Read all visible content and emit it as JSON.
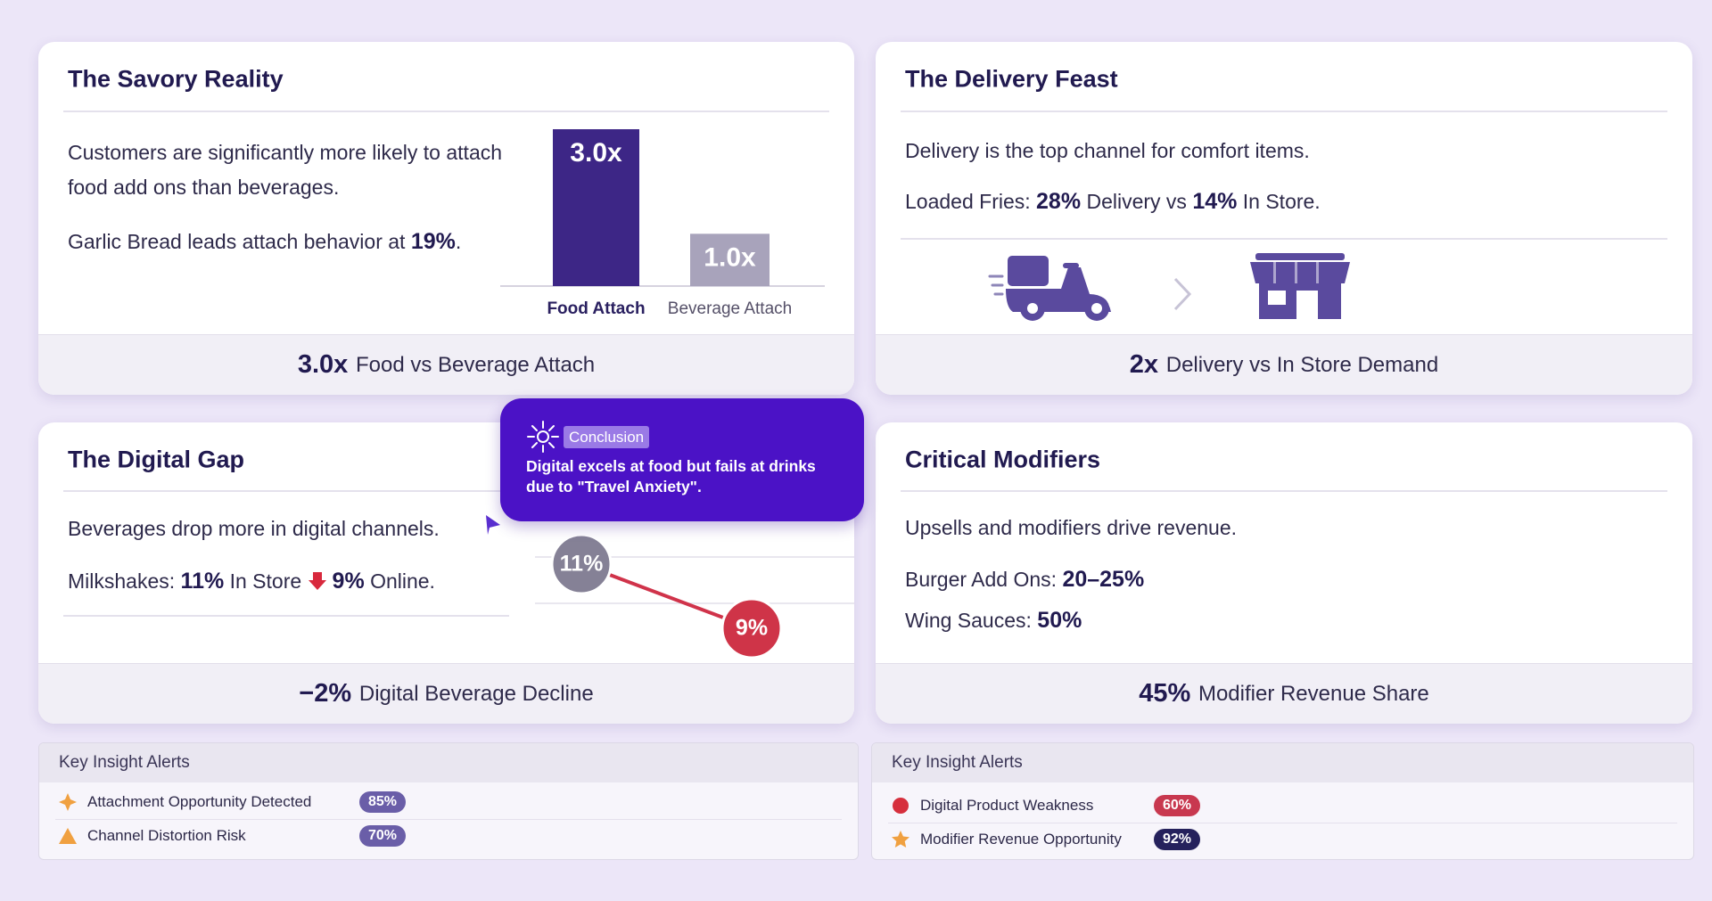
{
  "cards": [
    {
      "title": "The Savory Reality",
      "paragraphs": [
        [
          {
            "text": "Customers are significantly more likely to attach food add ons than beverages."
          }
        ],
        [
          {
            "text": "Garlic Bread leads attach behavior at "
          },
          {
            "text": "19%",
            "bold": true
          },
          {
            "text": "."
          }
        ]
      ],
      "chart": {
        "type": "bar",
        "categories": [
          "Food Attach",
          "Beverage Attach"
        ],
        "values": [
          3.0,
          1.0
        ],
        "value_labels": [
          "3.0x",
          "1.0x"
        ],
        "colors": [
          "#3d2686",
          "#a8a3bb"
        ]
      },
      "footer": [
        {
          "text": "3.0x",
          "bold": true
        },
        {
          "text": " Food vs Beverage Attach"
        }
      ]
    },
    {
      "title": "The Delivery Feast",
      "paragraphs": [
        [
          {
            "text": "Delivery is the top channel for comfort items."
          }
        ],
        [
          {
            "text": "Loaded Fries: "
          },
          {
            "text": "28%",
            "bold": true
          },
          {
            "text": " Delivery vs "
          },
          {
            "text": "14%",
            "bold": true
          },
          {
            "text": " In Store."
          }
        ]
      ],
      "footer": [
        {
          "text": "2x",
          "bold": true
        },
        {
          "text": " Delivery vs In Store Demand"
        }
      ]
    },
    {
      "title": "The Digital Gap",
      "paragraphs": [
        [
          {
            "text": "Beverages drop more in digital channels."
          }
        ],
        [
          {
            "text": "Milkshakes: "
          },
          {
            "text": "11%",
            "bold": true
          },
          {
            "text": " In Store "
          },
          {
            "text": "9%",
            "bold": true,
            "icon": "down"
          },
          {
            "text": " Online."
          }
        ]
      ],
      "chart": {
        "type": "line",
        "values": [
          11,
          9
        ],
        "value_labels": [
          "11%",
          "9%"
        ],
        "colors": [
          "#858196",
          "#cf3448"
        ],
        "line_color": "#d0334a"
      },
      "footer": [
        {
          "text": "−2%",
          "bold": true
        },
        {
          "text": " Digital Beverage Decline"
        }
      ]
    },
    {
      "title": "Critical Modifiers",
      "paragraphs": [
        [
          {
            "text": "Upsells and modifiers drive revenue."
          }
        ],
        [
          {
            "text": "Burger Add Ons: "
          },
          {
            "text": "20–25%",
            "bold": true
          }
        ],
        [
          {
            "text": "Wing Sauces: "
          },
          {
            "text": "50%",
            "bold": true
          }
        ]
      ],
      "footer": [
        {
          "text": "45%",
          "bold": true
        },
        {
          "text": " Modifier Revenue Share"
        }
      ]
    }
  ],
  "callout": {
    "badge": "Conclusion",
    "text": "Digital excels at food but fails at drinks due to \"Travel Anxiety\"."
  },
  "alerts": [
    {
      "title": "Key Insight Alerts",
      "items": [
        {
          "label": "Attachment Opportunity Detected",
          "value": "85%",
          "icon": "star4",
          "color": "#6a5ea8"
        },
        {
          "label": "Channel Distortion Risk",
          "value": "70%",
          "icon": "triangle",
          "color": "#6a5ea8"
        }
      ]
    },
    {
      "title": "Key Insight Alerts",
      "items": [
        {
          "label": "Digital Product Weakness",
          "value": "60%",
          "icon": "circle",
          "color": "#c8384f"
        },
        {
          "label": "Modifier Revenue Opportunity",
          "value": "92%",
          "icon": "star5",
          "color": "#25215c"
        }
      ]
    }
  ]
}
